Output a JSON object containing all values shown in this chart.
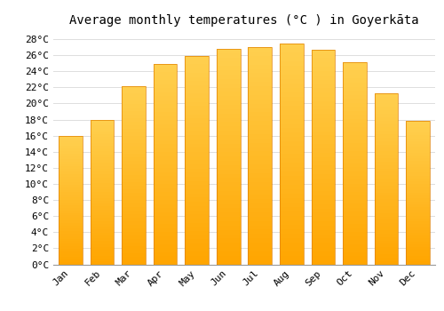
{
  "title": "Average monthly temperatures (°C ) in Goyerkāta",
  "months": [
    "Jan",
    "Feb",
    "Mar",
    "Apr",
    "May",
    "Jun",
    "Jul",
    "Aug",
    "Sep",
    "Oct",
    "Nov",
    "Dec"
  ],
  "values": [
    16.0,
    18.0,
    22.2,
    24.9,
    25.9,
    26.8,
    27.0,
    27.4,
    26.7,
    25.1,
    21.3,
    17.8
  ],
  "bar_color_bottom": "#FFA500",
  "bar_color_top": "#FFD050",
  "bar_edge_color": "#E08000",
  "background_color": "#FFFFFF",
  "grid_color": "#DDDDDD",
  "ylim": [
    0,
    29
  ],
  "title_fontsize": 10,
  "tick_fontsize": 8,
  "bar_width": 0.75
}
